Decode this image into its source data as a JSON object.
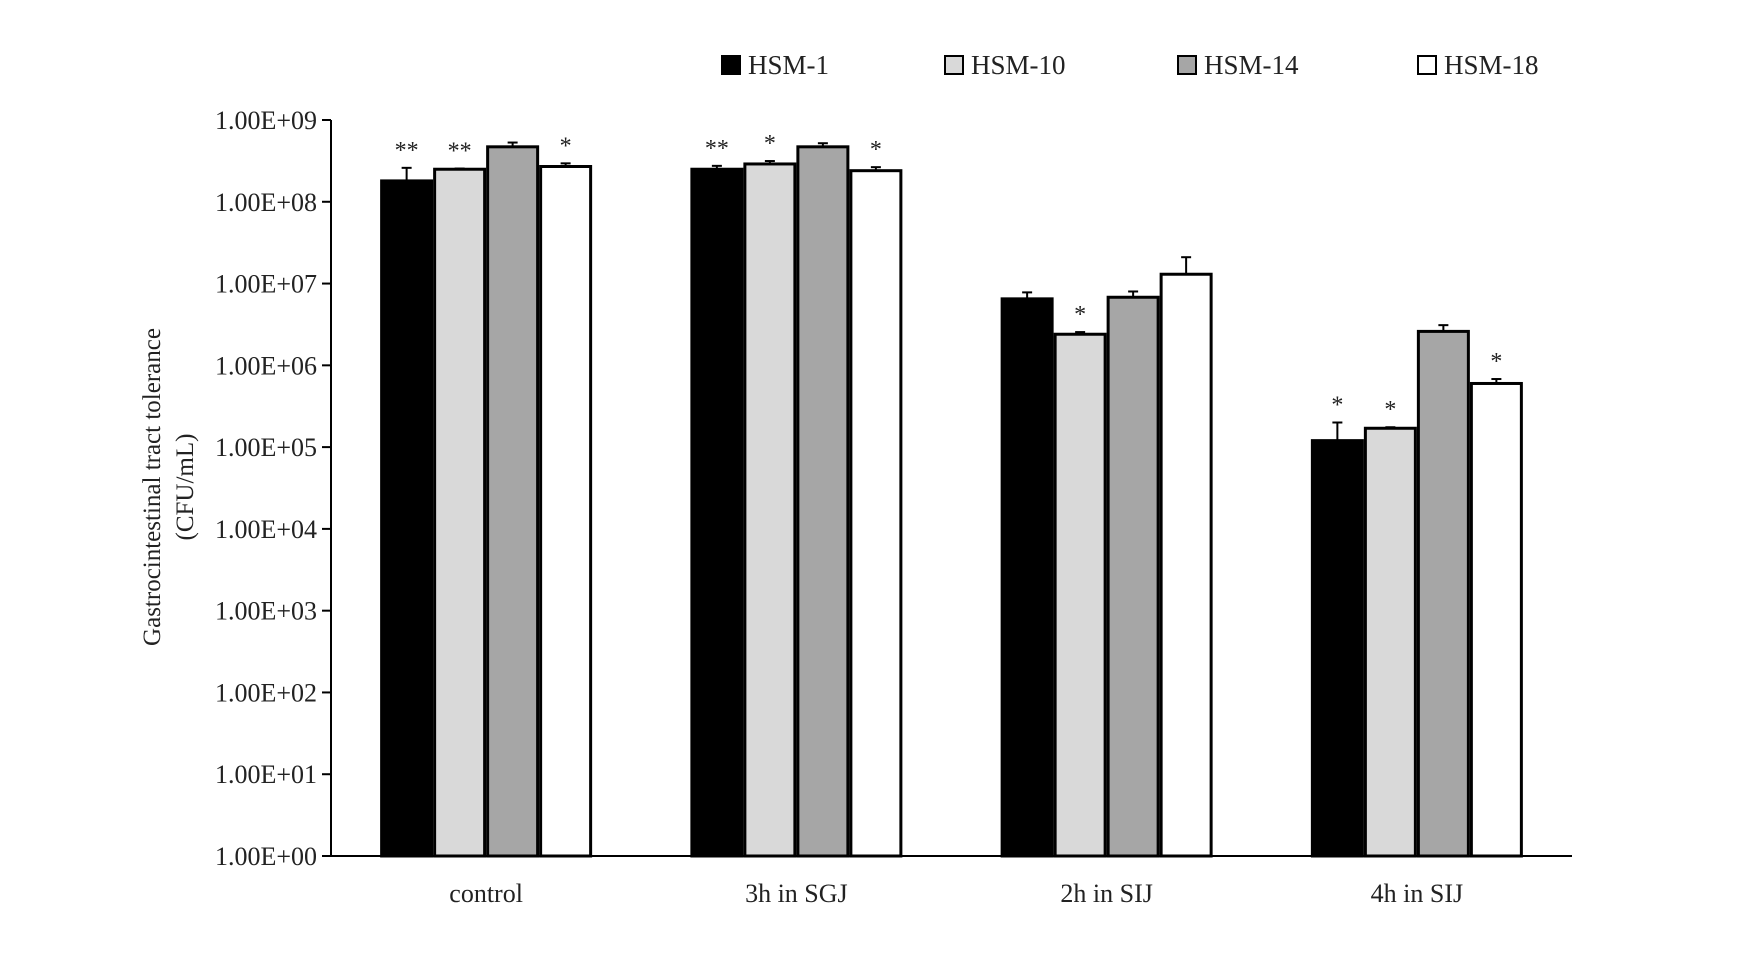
{
  "chart_data": {
    "type": "bar",
    "scale": "log",
    "ylabel_line1": "Gastrocintestinal tract tolerance",
    "ylabel_line2": "(CFU/mL)",
    "ylim": [
      1,
      1000000000
    ],
    "yticks": [
      "1.00E+00",
      "1.00E+01",
      "1.00E+02",
      "1.00E+03",
      "1.00E+04",
      "1.00E+05",
      "1.00E+06",
      "1.00E+07",
      "1.00E+08",
      "1.00E+09"
    ],
    "categories": [
      "control",
      "3h in SGJ",
      "2h in SIJ",
      "4h in SIJ"
    ],
    "grid": false,
    "legend_position": "top",
    "series": [
      {
        "name": "HSM-1",
        "color": "#000000",
        "values": [
          180000000,
          250000000,
          6500000,
          120000
        ],
        "error_upper": [
          260000000,
          275000000,
          7800000,
          200000
        ],
        "significance": [
          "**",
          "**",
          "",
          "*"
        ]
      },
      {
        "name": "HSM-10",
        "color": "#d9d9d9",
        "values": [
          250000000,
          290000000,
          2400000,
          170000
        ],
        "error_upper": [
          255000000,
          315000000,
          2550000,
          175000
        ],
        "significance": [
          "**",
          "*",
          "*",
          "*"
        ]
      },
      {
        "name": "HSM-14",
        "color": "#a6a6a6",
        "values": [
          470000000,
          470000000,
          6800000,
          2600000
        ],
        "error_upper": [
          530000000,
          520000000,
          8000000,
          3100000
        ],
        "significance": [
          "",
          "",
          "",
          ""
        ]
      },
      {
        "name": "HSM-18",
        "color": "#ffffff",
        "values": [
          270000000,
          240000000,
          13000000,
          600000
        ],
        "error_upper": [
          295000000,
          265000000,
          21000000,
          680000
        ],
        "significance": [
          "*",
          "*",
          "",
          "*"
        ]
      }
    ]
  }
}
